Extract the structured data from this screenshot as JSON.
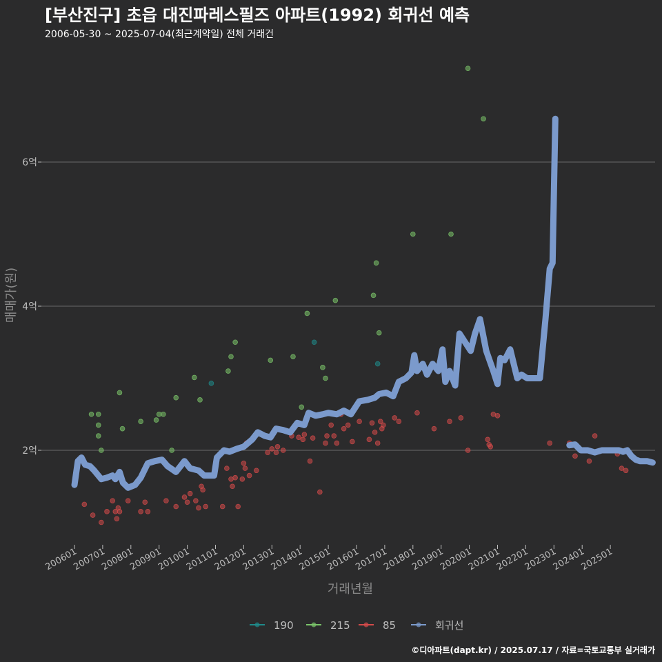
{
  "chart_data": {
    "type": "scatter",
    "title": "[부산진구] 초읍 대진파레스필즈 아파트(1992) 회귀선 예측",
    "subtitle": "2006-05-30 ~ 2025-07-04(최근계약일) 전체 거래건",
    "xlabel": "거래년월",
    "ylabel": "매매가(원)",
    "caption": "©디아파트(dapt.kr) / 2025.07.17 / 자료=국토교통부 실거래가",
    "grid": true,
    "legend_position": "bottom",
    "x_range": [
      "2006-01",
      "2025-12"
    ],
    "ylim": [
      0.8,
      7.5
    ],
    "y_ticks": [
      {
        "value": 2,
        "label": "2억"
      },
      {
        "value": 4,
        "label": "4억"
      },
      {
        "value": 6,
        "label": "6억"
      }
    ],
    "x_ticks": [
      "200601",
      "200701",
      "200801",
      "200901",
      "201001",
      "201101",
      "201201",
      "201301",
      "201401",
      "201501",
      "201601",
      "201701",
      "201801",
      "201901",
      "202001",
      "202101",
      "202201",
      "202301",
      "202401",
      "202501"
    ],
    "colors": {
      "190": "#1f8a8a",
      "215": "#7bc46a",
      "85": "#d44a4a",
      "회귀선": "#7b9acc"
    },
    "series": [
      {
        "name": "190",
        "points": [
          [
            2010.85,
            2.93
          ],
          [
            2014.5,
            3.5
          ],
          [
            2016.75,
            3.2
          ]
        ]
      },
      {
        "name": "215",
        "points": [
          [
            2006.6,
            2.5
          ],
          [
            2006.85,
            2.5
          ],
          [
            2006.85,
            2.35
          ],
          [
            2006.85,
            2.2
          ],
          [
            2006.95,
            2.0
          ],
          [
            2007.6,
            2.8
          ],
          [
            2007.7,
            2.3
          ],
          [
            2008.35,
            2.4
          ],
          [
            2008.9,
            2.42
          ],
          [
            2009.0,
            2.5
          ],
          [
            2009.15,
            2.5
          ],
          [
            2009.45,
            2.0
          ],
          [
            2009.6,
            2.73
          ],
          [
            2010.25,
            3.01
          ],
          [
            2010.45,
            2.7
          ],
          [
            2011.45,
            3.1
          ],
          [
            2011.55,
            3.3
          ],
          [
            2011.7,
            3.5
          ],
          [
            2012.95,
            3.25
          ],
          [
            2013.75,
            3.3
          ],
          [
            2014.05,
            2.6
          ],
          [
            2014.25,
            3.9
          ],
          [
            2014.8,
            3.15
          ],
          [
            2014.9,
            3.0
          ],
          [
            2015.25,
            4.08
          ],
          [
            2016.6,
            4.15
          ],
          [
            2016.7,
            4.6
          ],
          [
            2016.8,
            3.63
          ],
          [
            2018.0,
            5.0
          ],
          [
            2019.35,
            5.0
          ],
          [
            2019.95,
            7.3
          ],
          [
            2020.5,
            6.6
          ]
        ]
      },
      {
        "name": "85",
        "points": [
          [
            2006.35,
            1.25
          ],
          [
            2006.65,
            1.1
          ],
          [
            2006.95,
            1.0
          ],
          [
            2007.15,
            1.15
          ],
          [
            2007.35,
            1.3
          ],
          [
            2007.45,
            1.15
          ],
          [
            2007.55,
            1.2
          ],
          [
            2007.5,
            1.05
          ],
          [
            2007.6,
            1.15
          ],
          [
            2007.9,
            1.3
          ],
          [
            2008.35,
            1.15
          ],
          [
            2008.5,
            1.28
          ],
          [
            2008.6,
            1.15
          ],
          [
            2009.25,
            1.3
          ],
          [
            2009.6,
            1.22
          ],
          [
            2009.9,
            1.35
          ],
          [
            2010.0,
            1.28
          ],
          [
            2010.1,
            1.4
          ],
          [
            2010.3,
            1.3
          ],
          [
            2010.4,
            1.2
          ],
          [
            2010.5,
            1.5
          ],
          [
            2010.55,
            1.45
          ],
          [
            2010.65,
            1.22
          ],
          [
            2011.25,
            1.22
          ],
          [
            2011.4,
            1.75
          ],
          [
            2011.55,
            1.6
          ],
          [
            2011.6,
            1.5
          ],
          [
            2011.7,
            1.62
          ],
          [
            2011.8,
            1.22
          ],
          [
            2011.95,
            1.6
          ],
          [
            2012.0,
            1.82
          ],
          [
            2012.05,
            1.75
          ],
          [
            2012.1,
            2.1
          ],
          [
            2012.2,
            1.65
          ],
          [
            2012.45,
            1.72
          ],
          [
            2012.85,
            1.97
          ],
          [
            2013.0,
            2.02
          ],
          [
            2013.15,
            1.97
          ],
          [
            2013.2,
            2.05
          ],
          [
            2013.4,
            2.0
          ],
          [
            2013.7,
            2.2
          ],
          [
            2013.95,
            2.18
          ],
          [
            2014.1,
            2.15
          ],
          [
            2014.15,
            2.22
          ],
          [
            2014.35,
            1.85
          ],
          [
            2014.45,
            2.17
          ],
          [
            2014.7,
            1.42
          ],
          [
            2014.9,
            2.1
          ],
          [
            2014.95,
            2.2
          ],
          [
            2015.1,
            2.35
          ],
          [
            2015.2,
            2.2
          ],
          [
            2015.3,
            2.1
          ],
          [
            2015.45,
            2.5
          ],
          [
            2015.55,
            2.3
          ],
          [
            2015.7,
            2.35
          ],
          [
            2015.85,
            2.12
          ],
          [
            2016.1,
            2.4
          ],
          [
            2016.45,
            2.15
          ],
          [
            2016.55,
            2.38
          ],
          [
            2016.65,
            2.25
          ],
          [
            2016.75,
            2.1
          ],
          [
            2016.85,
            2.4
          ],
          [
            2016.9,
            2.3
          ],
          [
            2016.95,
            2.35
          ],
          [
            2017.35,
            2.45
          ],
          [
            2017.5,
            2.4
          ],
          [
            2018.15,
            2.52
          ],
          [
            2018.75,
            2.3
          ],
          [
            2019.3,
            2.4
          ],
          [
            2019.7,
            2.45
          ],
          [
            2019.95,
            2.0
          ],
          [
            2020.65,
            2.15
          ],
          [
            2020.7,
            2.08
          ],
          [
            2020.75,
            2.05
          ],
          [
            2020.85,
            2.5
          ],
          [
            2021.0,
            2.48
          ],
          [
            2022.85,
            2.1
          ],
          [
            2023.55,
            2.1
          ],
          [
            2023.75,
            1.92
          ],
          [
            2024.25,
            1.85
          ],
          [
            2024.45,
            2.2
          ],
          [
            2025.25,
            1.95
          ],
          [
            2025.4,
            1.75
          ],
          [
            2025.55,
            1.72
          ]
        ]
      }
    ],
    "regression": [
      {
        "name": "회귀선",
        "points": [
          [
            2006.0,
            1.52
          ],
          [
            2006.12,
            1.85
          ],
          [
            2006.25,
            1.9
          ],
          [
            2006.38,
            1.8
          ],
          [
            2006.55,
            1.78
          ],
          [
            2006.7,
            1.72
          ],
          [
            2006.95,
            1.6
          ],
          [
            2007.15,
            1.62
          ],
          [
            2007.35,
            1.65
          ],
          [
            2007.45,
            1.6
          ],
          [
            2007.6,
            1.7
          ],
          [
            2007.72,
            1.55
          ],
          [
            2007.9,
            1.48
          ],
          [
            2008.15,
            1.52
          ],
          [
            2008.35,
            1.62
          ],
          [
            2008.6,
            1.82
          ],
          [
            2008.85,
            1.85
          ],
          [
            2009.1,
            1.87
          ],
          [
            2009.3,
            1.78
          ],
          [
            2009.6,
            1.7
          ],
          [
            2009.9,
            1.85
          ],
          [
            2010.1,
            1.75
          ],
          [
            2010.4,
            1.72
          ],
          [
            2010.6,
            1.65
          ],
          [
            2010.95,
            1.65
          ],
          [
            2011.05,
            1.9
          ],
          [
            2011.3,
            2.0
          ],
          [
            2011.5,
            1.98
          ],
          [
            2011.75,
            2.02
          ],
          [
            2012.0,
            2.05
          ],
          [
            2012.3,
            2.15
          ],
          [
            2012.5,
            2.25
          ],
          [
            2012.75,
            2.2
          ],
          [
            2012.95,
            2.18
          ],
          [
            2013.15,
            2.3
          ],
          [
            2013.4,
            2.28
          ],
          [
            2013.65,
            2.25
          ],
          [
            2013.9,
            2.38
          ],
          [
            2014.15,
            2.35
          ],
          [
            2014.3,
            2.52
          ],
          [
            2014.55,
            2.48
          ],
          [
            2014.8,
            2.5
          ],
          [
            2015.0,
            2.52
          ],
          [
            2015.3,
            2.5
          ],
          [
            2015.55,
            2.55
          ],
          [
            2015.8,
            2.5
          ],
          [
            2016.1,
            2.68
          ],
          [
            2016.4,
            2.7
          ],
          [
            2016.65,
            2.73
          ],
          [
            2016.8,
            2.78
          ],
          [
            2017.05,
            2.8
          ],
          [
            2017.3,
            2.75
          ],
          [
            2017.5,
            2.95
          ],
          [
            2017.75,
            3.0
          ],
          [
            2017.95,
            3.08
          ],
          [
            2018.05,
            3.32
          ],
          [
            2018.15,
            3.1
          ],
          [
            2018.35,
            3.2
          ],
          [
            2018.5,
            3.05
          ],
          [
            2018.7,
            3.2
          ],
          [
            2018.9,
            3.1
          ],
          [
            2019.05,
            3.4
          ],
          [
            2019.15,
            2.95
          ],
          [
            2019.3,
            3.1
          ],
          [
            2019.5,
            2.9
          ],
          [
            2019.65,
            3.62
          ],
          [
            2019.85,
            3.5
          ],
          [
            2020.05,
            3.38
          ],
          [
            2020.2,
            3.62
          ],
          [
            2020.38,
            3.82
          ],
          [
            2020.6,
            3.38
          ],
          [
            2020.85,
            3.1
          ],
          [
            2021.0,
            2.92
          ],
          [
            2021.1,
            3.28
          ],
          [
            2021.25,
            3.25
          ],
          [
            2021.45,
            3.4
          ],
          [
            2021.7,
            3.0
          ],
          [
            2021.85,
            3.05
          ],
          [
            2022.05,
            3.0
          ],
          [
            2022.3,
            3.0
          ],
          [
            2022.5,
            3.0
          ],
          [
            2022.7,
            3.82
          ],
          [
            2022.85,
            4.52
          ],
          [
            2022.95,
            4.6
          ],
          [
            2023.05,
            6.6
          ]
        ]
      },
      {
        "name": "회귀선",
        "points": [
          [
            2023.55,
            2.07
          ],
          [
            2023.75,
            2.08
          ],
          [
            2023.95,
            2.0
          ],
          [
            2024.2,
            2.0
          ],
          [
            2024.45,
            1.97
          ],
          [
            2024.7,
            2.0
          ],
          [
            2024.95,
            2.0
          ],
          [
            2025.15,
            2.0
          ],
          [
            2025.3,
            2.0
          ],
          [
            2025.45,
            1.98
          ],
          [
            2025.6,
            2.0
          ],
          [
            2025.75,
            1.92
          ],
          [
            2025.9,
            1.87
          ],
          [
            2026.05,
            1.85
          ],
          [
            2026.3,
            1.85
          ],
          [
            2026.5,
            1.83
          ]
        ]
      }
    ],
    "legend": [
      "190",
      "215",
      "85",
      "회귀선"
    ]
  }
}
